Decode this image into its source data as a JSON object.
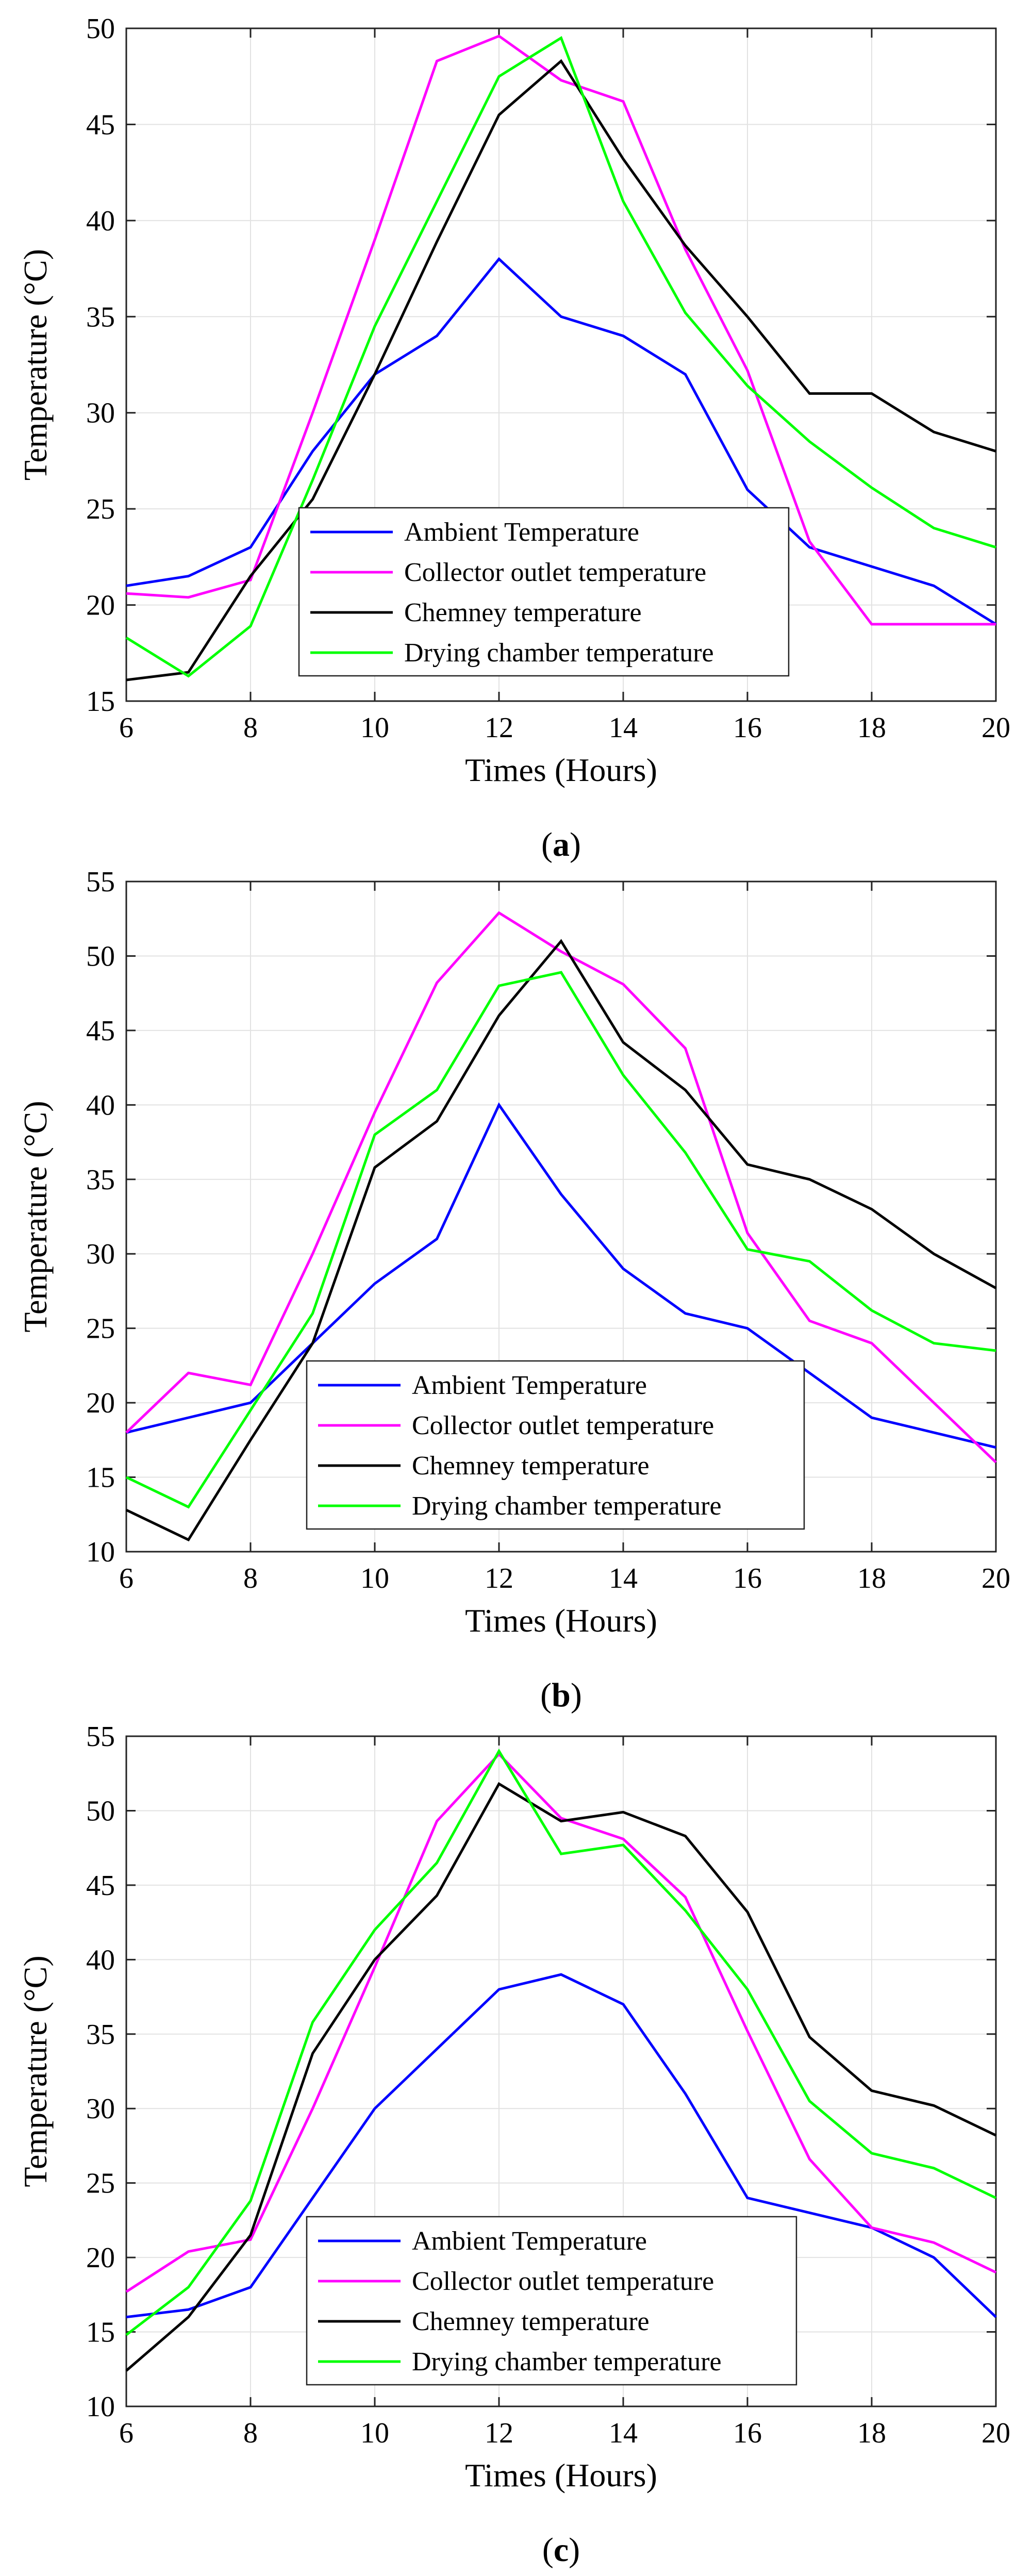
{
  "chart_data": [
    {
      "type": "line",
      "caption": {
        "pre": "(",
        "letter": "a",
        "post": ")"
      },
      "xlabel": "Times (Hours)",
      "ylabel": "Temperature (°C)",
      "xlim": [
        6,
        20
      ],
      "ylim": [
        15,
        50
      ],
      "xticks": [
        6,
        8,
        10,
        12,
        14,
        16,
        18,
        20
      ],
      "yticks": [
        15,
        20,
        25,
        30,
        35,
        40,
        45,
        50
      ],
      "grid": true,
      "legend_position": "lower-center",
      "x": [
        6,
        7,
        8,
        9,
        10,
        11,
        12,
        13,
        14,
        15,
        16,
        17,
        18,
        19,
        20
      ],
      "series": [
        {
          "name": "Ambient Temperature",
          "color": "#0000ff",
          "values": [
            21,
            21.5,
            23,
            28,
            32,
            34,
            38,
            35,
            34,
            32,
            26,
            23,
            22,
            21,
            19
          ]
        },
        {
          "name": "Collector outlet temperature",
          "color": "#ff00ff",
          "values": [
            20.6,
            20.4,
            21.3,
            30,
            39,
            48.3,
            49.6,
            47.3,
            46.2,
            38.5,
            32.2,
            23.3,
            19,
            19,
            19
          ]
        },
        {
          "name": "Chemney temperature",
          "color": "#000000",
          "values": [
            16.1,
            16.5,
            21.5,
            25.5,
            32,
            38.9,
            45.5,
            48.3,
            43.2,
            38.7,
            35,
            31,
            31,
            29,
            28
          ]
        },
        {
          "name": "Drying chamber temperature",
          "color": "#00ff00",
          "values": [
            18.3,
            16.3,
            18.9,
            26.5,
            34.5,
            41,
            47.5,
            49.5,
            41,
            35.2,
            31.4,
            28.5,
            26.1,
            24,
            23
          ]
        }
      ]
    },
    {
      "type": "line",
      "caption": {
        "pre": "(",
        "letter": "b",
        "post": ")"
      },
      "xlabel": "Times (Hours)",
      "ylabel": "Temperature (°C)",
      "xlim": [
        6,
        20
      ],
      "ylim": [
        10,
        55
      ],
      "xticks": [
        6,
        8,
        10,
        12,
        14,
        16,
        18,
        20
      ],
      "yticks": [
        10,
        15,
        20,
        25,
        30,
        35,
        40,
        45,
        50,
        55
      ],
      "grid": true,
      "legend_position": "lower-right",
      "x": [
        6,
        7,
        8,
        9,
        10,
        11,
        12,
        13,
        14,
        15,
        16,
        17,
        18,
        19,
        20
      ],
      "series": [
        {
          "name": "Ambient Temperature",
          "color": "#0000ff",
          "values": [
            18,
            19,
            20,
            24,
            28,
            31,
            40,
            34,
            29,
            26,
            25,
            22,
            19,
            18,
            17
          ]
        },
        {
          "name": "Collector outlet temperature",
          "color": "#ff00ff",
          "values": [
            18,
            22,
            21.2,
            30,
            39.5,
            48.2,
            52.9,
            50.3,
            48.1,
            43.8,
            31.4,
            25.5,
            24,
            20,
            16
          ]
        },
        {
          "name": "Chemney temperature",
          "color": "#000000",
          "values": [
            12.8,
            10.8,
            17.5,
            24,
            35.8,
            38.9,
            46,
            51,
            44.2,
            41,
            36,
            35,
            33,
            30,
            27.7
          ]
        },
        {
          "name": "Drying chamber temperature",
          "color": "#00ff00",
          "values": [
            15,
            13,
            19.5,
            26,
            38,
            41,
            48,
            48.9,
            42,
            36.8,
            30.3,
            29.5,
            26.2,
            24,
            23.5
          ]
        }
      ]
    },
    {
      "type": "line",
      "caption": {
        "pre": "(",
        "letter": "c",
        "post": ")"
      },
      "xlabel": "Times (Hours)",
      "ylabel": "Temperature (°C)",
      "xlim": [
        6,
        20
      ],
      "ylim": [
        10,
        55
      ],
      "xticks": [
        6,
        8,
        10,
        12,
        14,
        16,
        18,
        20
      ],
      "yticks": [
        10,
        15,
        20,
        25,
        30,
        35,
        40,
        45,
        50,
        55
      ],
      "grid": true,
      "legend_position": "lower-center",
      "x": [
        6,
        7,
        8,
        9,
        10,
        11,
        12,
        13,
        14,
        15,
        16,
        17,
        18,
        19,
        20
      ],
      "series": [
        {
          "name": "Ambient Temperature",
          "color": "#0000ff",
          "values": [
            16,
            16.5,
            18,
            24,
            30,
            34,
            38,
            39,
            37,
            31,
            24,
            23,
            22,
            20,
            16
          ]
        },
        {
          "name": "Collector outlet temperature",
          "color": "#ff00ff",
          "values": [
            17.7,
            20.4,
            21.2,
            30,
            39.5,
            49.3,
            53.8,
            49.5,
            48.1,
            44.2,
            35.2,
            26.6,
            22,
            21,
            19
          ]
        },
        {
          "name": "Chemney temperature",
          "color": "#000000",
          "values": [
            12.4,
            16,
            21.5,
            33.7,
            40,
            44.3,
            51.8,
            49.3,
            49.9,
            48.3,
            43.2,
            34.8,
            31.2,
            30.2,
            28.2
          ]
        },
        {
          "name": "Drying chamber temperature",
          "color": "#00ff00",
          "values": [
            14.8,
            18,
            23.8,
            35.8,
            42,
            46.5,
            54,
            47.1,
            47.7,
            43.3,
            38,
            30.5,
            27,
            26,
            24
          ]
        }
      ]
    }
  ]
}
